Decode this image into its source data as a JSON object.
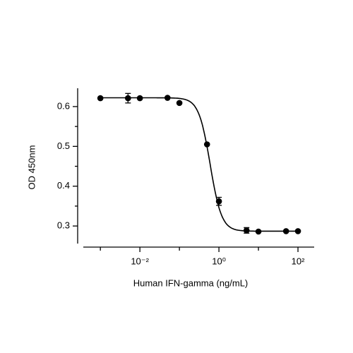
{
  "chart_data": {
    "type": "scatter",
    "xlabel": "Human IFN-gamma (ng/mL)",
    "ylabel": "OD 450nm",
    "x": [
      0.001,
      0.005,
      0.01,
      0.05,
      0.1,
      0.5,
      1,
      5,
      10,
      50,
      100
    ],
    "series": [
      {
        "color": "#000000",
        "values": [
          0.621,
          0.621,
          0.621,
          0.622,
          0.609,
          0.505,
          0.362,
          0.289,
          0.286,
          0.287,
          0.287
        ],
        "errors": [
          null,
          0.012,
          null,
          null,
          null,
          null,
          0.01,
          0.007,
          null,
          null,
          null
        ]
      }
    ],
    "fit": {
      "bottom": 0.287,
      "top": 0.622,
      "ec50": 0.6,
      "hill": 3
    },
    "xscale": "log",
    "xlim": [
      0.00037,
      257
    ],
    "xticks": [
      {
        "value": 0.01,
        "label": "10⁻²"
      },
      {
        "value": 1,
        "label": "10⁰"
      },
      {
        "value": 100,
        "label": "10²"
      }
    ],
    "xminor_ticks": [
      0.001,
      0.1,
      10
    ],
    "ylim": [
      0.247,
      0.646
    ],
    "yticks": [
      0.3,
      0.4,
      0.5,
      0.6
    ],
    "yminor_ticks": [
      0.35,
      0.45,
      0.55
    ],
    "grid": false
  }
}
